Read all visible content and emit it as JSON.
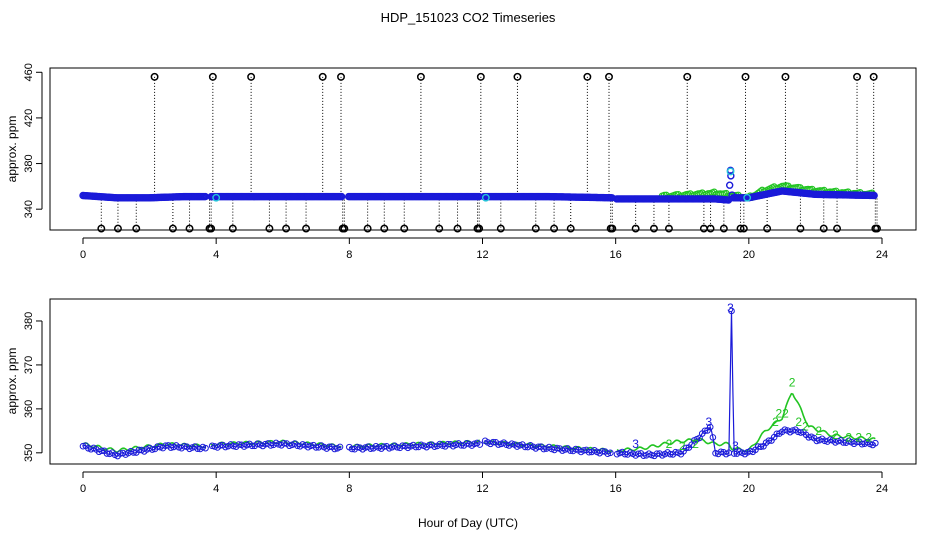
{
  "title": "HDP_151023  CO2 Timeseries",
  "xlabel": "Hour of Day (UTC)",
  "colors": {
    "black": "#000000",
    "blue": "#1a1ad9",
    "cyan": "#22c8d8",
    "green": "#22c422"
  },
  "chart_data": [
    {
      "type": "scatter",
      "title": "HDP_151023  CO2 Timeseries",
      "xlabel": "",
      "ylabel": "approx. ppm",
      "xlim": [
        0,
        24
      ],
      "ylim": [
        320,
        462
      ],
      "xticks": [
        0,
        4,
        8,
        12,
        16,
        20,
        24
      ],
      "yticks": [
        340,
        380,
        420,
        460
      ],
      "grid": false,
      "saturation_value": 456,
      "low_value": 323,
      "black_high": [
        2.15,
        3.9,
        5.05,
        7.2,
        7.75,
        10.15,
        11.95,
        13.05,
        15.15,
        15.8,
        18.15,
        19.9,
        21.1,
        23.25,
        23.75
      ],
      "black_low": [
        0.55,
        1.05,
        1.6,
        2.7,
        3.2,
        3.8,
        3.85,
        4.5,
        5.6,
        6.1,
        6.7,
        7.8,
        7.85,
        8.55,
        9.05,
        9.65,
        10.7,
        11.25,
        11.85,
        11.9,
        12.55,
        13.6,
        14.15,
        14.65,
        15.85,
        15.9,
        16.6,
        17.15,
        17.6,
        18.65,
        18.85,
        19.25,
        19.75,
        19.85,
        20.55,
        21.55,
        22.25,
        22.65,
        23.8,
        23.85
      ],
      "cyan_points": [
        [
          4.0,
          350
        ],
        [
          12.1,
          350
        ],
        [
          19.45,
          373
        ],
        [
          19.95,
          350
        ]
      ],
      "series": [
        {
          "name": "",
          "color": "blue",
          "points": [
            [
              0.0,
              352
            ],
            [
              1.0,
              350
            ],
            [
              2.0,
              350
            ],
            [
              3.0,
              351
            ],
            [
              4.0,
              351
            ],
            [
              6.0,
              351
            ],
            [
              7.8,
              351
            ],
            [
              8.0,
              351
            ],
            [
              10.0,
              351
            ],
            [
              11.9,
              351
            ],
            [
              12.0,
              351
            ],
            [
              14.0,
              351
            ],
            [
              15.9,
              350
            ],
            [
              16.0,
              349
            ],
            [
              18.0,
              349
            ],
            [
              19.0,
              349
            ],
            [
              19.4,
              348
            ],
            [
              19.45,
              374
            ],
            [
              19.5,
              350
            ],
            [
              19.9,
              350
            ],
            [
              20.0,
              350
            ],
            [
              21.0,
              356
            ],
            [
              22.0,
              353
            ],
            [
              23.8,
              352
            ]
          ]
        },
        {
          "name": "",
          "color": "green",
          "points": [
            [
              17.4,
              351
            ],
            [
              18.0,
              352
            ],
            [
              19.0,
              354
            ],
            [
              20.0,
              350
            ],
            [
              20.5,
              357
            ],
            [
              21.0,
              360
            ],
            [
              21.5,
              358
            ],
            [
              22.0,
              356
            ],
            [
              23.0,
              354
            ],
            [
              23.8,
              353
            ]
          ]
        }
      ]
    },
    {
      "type": "scatter",
      "title": "",
      "xlabel": "Hour of Day (UTC)",
      "ylabel": "approx. ppm",
      "xlim": [
        0,
        24
      ],
      "ylim": [
        347,
        385
      ],
      "xticks": [
        0,
        4,
        8,
        12,
        16,
        20,
        24
      ],
      "yticks": [
        350,
        360,
        370,
        380
      ],
      "grid": false,
      "series": [
        {
          "name": "",
          "color": "green",
          "points": [
            [
              0.0,
              352
            ],
            [
              1.0,
              350.5
            ],
            [
              2.5,
              352
            ],
            [
              3.7,
              351.5
            ],
            [
              4.0,
              352
            ],
            [
              6.0,
              352.5
            ],
            [
              7.8,
              351.5
            ],
            [
              8.0,
              351.5
            ],
            [
              10.0,
              352
            ],
            [
              11.9,
              352.5
            ],
            [
              12.0,
              352.5
            ],
            [
              14.0,
              351.5
            ],
            [
              15.9,
              350.5
            ],
            [
              16.0,
              350.5
            ],
            [
              16.8,
              351
            ],
            [
              17.8,
              352.5
            ],
            [
              18.5,
              353
            ],
            [
              19.0,
              352
            ],
            [
              19.4,
              352
            ],
            [
              19.5,
              351
            ],
            [
              20.0,
              350.5
            ],
            [
              20.5,
              355
            ],
            [
              21.0,
              358
            ],
            [
              21.3,
              364
            ],
            [
              21.8,
              356
            ],
            [
              22.5,
              354
            ],
            [
              23.8,
              353
            ]
          ]
        },
        {
          "name": "",
          "color": "blue",
          "points": [
            [
              0.0,
              351.5
            ],
            [
              1.0,
              349.5
            ],
            [
              2.5,
              351.5
            ],
            [
              3.7,
              351
            ],
            [
              4.0,
              351.5
            ],
            [
              6.0,
              352
            ],
            [
              7.8,
              351
            ],
            [
              8.0,
              351
            ],
            [
              10.0,
              351.5
            ],
            [
              11.9,
              352
            ],
            [
              12.0,
              352.5
            ],
            [
              14.0,
              351
            ],
            [
              15.9,
              350
            ],
            [
              16.0,
              350
            ],
            [
              17.0,
              349.5
            ],
            [
              18.0,
              350
            ],
            [
              18.85,
              356
            ],
            [
              19.0,
              350
            ],
            [
              19.4,
              350
            ],
            [
              19.48,
              382
            ],
            [
              19.55,
              350
            ],
            [
              20.0,
              350
            ],
            [
              20.5,
              352
            ],
            [
              21.0,
              355
            ],
            [
              21.5,
              355
            ],
            [
              22.0,
              353
            ],
            [
              23.8,
              352
            ]
          ]
        }
      ],
      "digit_labels": [
        {
          "text": "3",
          "color": "blue",
          "x": 16.6,
          "y": 352
        },
        {
          "text": "3",
          "color": "blue",
          "x": 18.8,
          "y": 357
        },
        {
          "text": "3",
          "color": "blue",
          "x": 19.45,
          "y": 383
        },
        {
          "text": "3",
          "color": "blue",
          "x": 19.6,
          "y": 351.5
        },
        {
          "text": "2",
          "color": "green",
          "x": 17.6,
          "y": 352
        },
        {
          "text": "2",
          "color": "green",
          "x": 18.0,
          "y": 351.5
        },
        {
          "text": "2",
          "color": "green",
          "x": 18.4,
          "y": 352
        },
        {
          "text": "2",
          "color": "green",
          "x": 21.3,
          "y": 366
        },
        {
          "text": "2",
          "color": "green",
          "x": 20.9,
          "y": 359
        },
        {
          "text": "2",
          "color": "green",
          "x": 21.1,
          "y": 359
        },
        {
          "text": "2",
          "color": "green",
          "x": 21.5,
          "y": 357
        },
        {
          "text": "2",
          "color": "green",
          "x": 20.8,
          "y": 357
        },
        {
          "text": "2",
          "color": "green",
          "x": 21.7,
          "y": 356
        },
        {
          "text": "2",
          "color": "green",
          "x": 22.1,
          "y": 355
        },
        {
          "text": "2",
          "color": "green",
          "x": 22.6,
          "y": 354
        },
        {
          "text": "2",
          "color": "green",
          "x": 23.0,
          "y": 353.5
        },
        {
          "text": "2",
          "color": "green",
          "x": 23.3,
          "y": 353.5
        },
        {
          "text": "2",
          "color": "green",
          "x": 23.6,
          "y": 353.5
        }
      ]
    }
  ]
}
